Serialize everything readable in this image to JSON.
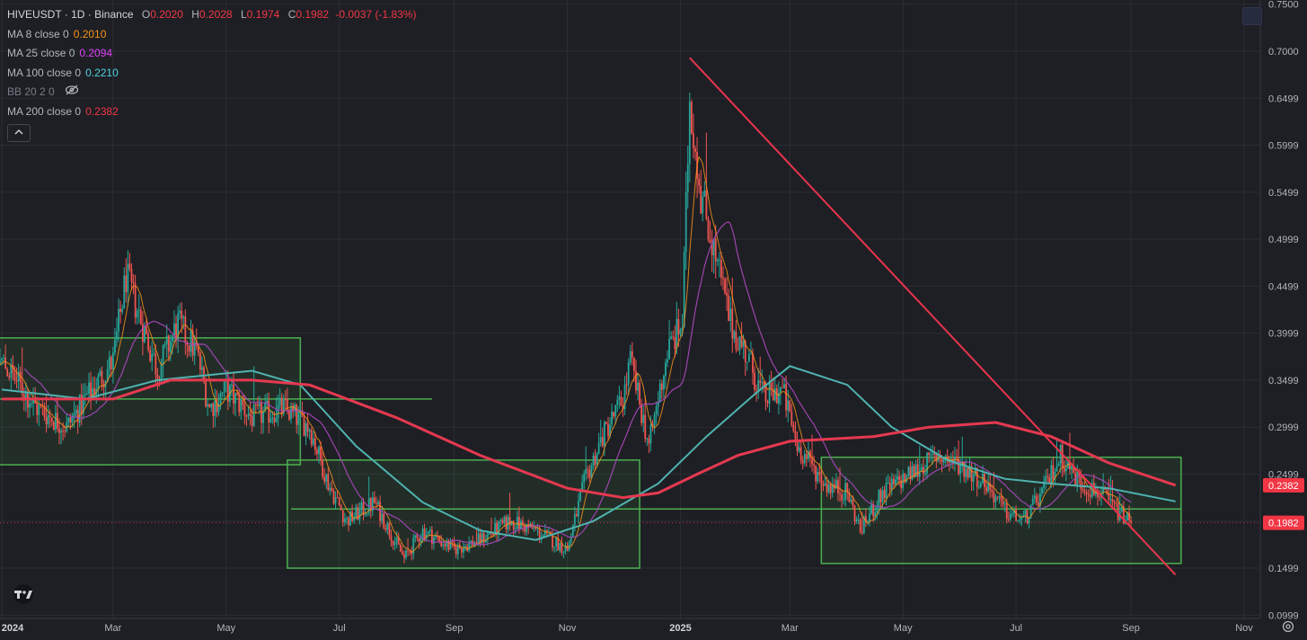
{
  "legend": {
    "symbol": "HIVEUSDT · 1D · Binance",
    "o_label": "O",
    "o_value": "0.2020",
    "h_label": "H",
    "h_value": "0.2028",
    "l_label": "L",
    "l_value": "0.1974",
    "c_label": "C",
    "c_value": "0.1982",
    "change": "-0.0037 (-1.83%)",
    "indicators": [
      {
        "label": "MA 8 close 0",
        "value": "0.2010",
        "color": "#f7931a"
      },
      {
        "label": "MA 25 close 0",
        "value": "0.2094",
        "color": "#e040fb"
      },
      {
        "label": "MA 100 close 0",
        "value": "0.2210",
        "color": "#4dd0e1"
      },
      {
        "label": "BB 20 2 0",
        "value": "",
        "color": "#787b86"
      },
      {
        "label": "MA 200 close 0",
        "value": "0.2382",
        "color": "#f23645"
      }
    ]
  },
  "colors": {
    "background": "#1e1f24",
    "grid": "#2a2d35",
    "up": "#26a69a",
    "down": "#ef5350",
    "ma8": "#f7931a",
    "ma25": "#ab47bc",
    "ma100": "#4fb3b0",
    "ma200": "#e53950",
    "box_stroke": "#4caf50",
    "box_fill": "rgba(76,175,80,0.10)",
    "trendline": "#e8344e"
  },
  "chart_data": {
    "type": "candlestick",
    "symbol": "HIVEUSDT",
    "interval": "1D",
    "exchange": "Binance",
    "x_axis_labels": [
      "2024",
      "Mar",
      "May",
      "Jul",
      "Sep",
      "Nov",
      "2025",
      "Mar",
      "May",
      "Jul",
      "Sep",
      "Nov"
    ],
    "y_axis_labels": [
      "0.7500",
      "0.7000",
      "0.6499",
      "0.5999",
      "0.5499",
      "0.4999",
      "0.4499",
      "0.3999",
      "0.3499",
      "0.2999",
      "0.2499",
      "0.1999",
      "0.1499",
      "0.0999"
    ],
    "y_axis_ticks": [
      0.75,
      0.7,
      0.65,
      0.6,
      0.55,
      0.5,
      0.45,
      0.4,
      0.35,
      0.3,
      0.25,
      0.2,
      0.15,
      0.1
    ],
    "ylim": [
      0.0965,
      0.7545
    ],
    "price_tags": [
      {
        "label": "0.2382",
        "value": 0.2382,
        "color": "#f23645"
      },
      {
        "label": "0.1982",
        "value": 0.1982,
        "color": "#f23645"
      }
    ],
    "close_price": 0.1982,
    "close_path": [
      [
        "2024-01-01",
        0.37
      ],
      [
        "2024-01-20",
        0.32
      ],
      [
        "2024-02-05",
        0.3
      ],
      [
        "2024-02-15",
        0.33
      ],
      [
        "2024-03-01",
        0.37
      ],
      [
        "2024-03-08",
        0.46
      ],
      [
        "2024-03-15",
        0.42
      ],
      [
        "2024-03-25",
        0.36
      ],
      [
        "2024-04-05",
        0.41
      ],
      [
        "2024-04-15",
        0.38
      ],
      [
        "2024-04-22",
        0.32
      ],
      [
        "2024-05-01",
        0.34
      ],
      [
        "2024-05-15",
        0.31
      ],
      [
        "2024-06-01",
        0.32
      ],
      [
        "2024-06-15",
        0.3
      ],
      [
        "2024-06-25",
        0.24
      ],
      [
        "2024-07-05",
        0.2
      ],
      [
        "2024-07-20",
        0.22
      ],
      [
        "2024-08-05",
        0.16
      ],
      [
        "2024-08-15",
        0.19
      ],
      [
        "2024-09-01",
        0.17
      ],
      [
        "2024-09-15",
        0.18
      ],
      [
        "2024-10-01",
        0.2
      ],
      [
        "2024-10-15",
        0.19
      ],
      [
        "2024-11-01",
        0.17
      ],
      [
        "2024-11-10",
        0.24
      ],
      [
        "2024-11-20",
        0.29
      ],
      [
        "2024-12-01",
        0.33
      ],
      [
        "2024-12-05",
        0.37
      ],
      [
        "2024-12-15",
        0.28
      ],
      [
        "2024-12-25",
        0.38
      ],
      [
        "2025-01-02",
        0.41
      ],
      [
        "2025-01-06",
        0.65
      ],
      [
        "2025-01-12",
        0.55
      ],
      [
        "2025-01-20",
        0.48
      ],
      [
        "2025-01-28",
        0.41
      ],
      [
        "2025-02-05",
        0.38
      ],
      [
        "2025-02-15",
        0.33
      ],
      [
        "2025-02-25",
        0.34
      ],
      [
        "2025-03-05",
        0.28
      ],
      [
        "2025-03-20",
        0.24
      ],
      [
        "2025-04-01",
        0.23
      ],
      [
        "2025-04-08",
        0.19
      ],
      [
        "2025-04-20",
        0.23
      ],
      [
        "2025-05-05",
        0.25
      ],
      [
        "2025-05-20",
        0.27
      ],
      [
        "2025-06-01",
        0.26
      ],
      [
        "2025-06-15",
        0.24
      ],
      [
        "2025-06-25",
        0.21
      ],
      [
        "2025-07-05",
        0.2
      ],
      [
        "2025-07-15",
        0.23
      ],
      [
        "2025-07-25",
        0.27
      ],
      [
        "2025-08-05",
        0.24
      ],
      [
        "2025-08-15",
        0.23
      ],
      [
        "2025-08-25",
        0.21
      ],
      [
        "2025-09-01",
        0.1982
      ]
    ],
    "moving_averages": {
      "ma200": [
        [
          "2024-01-01",
          0.33
        ],
        [
          "2024-03-01",
          0.33
        ],
        [
          "2024-04-01",
          0.35
        ],
        [
          "2024-05-15",
          0.35
        ],
        [
          "2024-06-15",
          0.345
        ],
        [
          "2024-08-01",
          0.31
        ],
        [
          "2024-09-15",
          0.27
        ],
        [
          "2024-11-01",
          0.235
        ],
        [
          "2024-12-01",
          0.225
        ],
        [
          "2024-12-20",
          0.23
        ],
        [
          "2025-01-10",
          0.25
        ],
        [
          "2025-02-01",
          0.27
        ],
        [
          "2025-03-01",
          0.285
        ],
        [
          "2025-04-15",
          0.29
        ],
        [
          "2025-05-15",
          0.3
        ],
        [
          "2025-06-20",
          0.305
        ],
        [
          "2025-07-20",
          0.29
        ],
        [
          "2025-08-20",
          0.262
        ],
        [
          "2025-09-25",
          0.2382
        ]
      ],
      "ma100": [
        [
          "2024-01-01",
          0.34
        ],
        [
          "2024-02-15",
          0.33
        ],
        [
          "2024-03-25",
          0.35
        ],
        [
          "2024-05-15",
          0.36
        ],
        [
          "2024-06-10",
          0.345
        ],
        [
          "2024-07-10",
          0.28
        ],
        [
          "2024-08-15",
          0.22
        ],
        [
          "2024-09-15",
          0.19
        ],
        [
          "2024-10-15",
          0.18
        ],
        [
          "2024-11-15",
          0.2
        ],
        [
          "2024-12-20",
          0.24
        ],
        [
          "2025-01-15",
          0.29
        ],
        [
          "2025-02-10",
          0.335
        ],
        [
          "2025-03-01",
          0.365
        ],
        [
          "2025-04-01",
          0.345
        ],
        [
          "2025-04-25",
          0.3
        ],
        [
          "2025-05-25",
          0.265
        ],
        [
          "2025-06-25",
          0.245
        ],
        [
          "2025-07-20",
          0.24
        ],
        [
          "2025-08-20",
          0.235
        ],
        [
          "2025-09-25",
          0.221
        ]
      ]
    },
    "annotations": {
      "boxes": [
        {
          "x0": "2023-12-20",
          "x1": "2024-06-10",
          "y0": 0.26,
          "y1": 0.395
        },
        {
          "x0": "2024-06-03",
          "x1": "2024-12-10",
          "y0": 0.15,
          "y1": 0.265
        },
        {
          "x0": "2025-03-18",
          "x1": "2025-09-28",
          "y0": 0.155,
          "y1": 0.268
        }
      ],
      "horizontal_lines": [
        {
          "x0": "2023-12-20",
          "x1": "2024-08-20",
          "y": 0.33
        },
        {
          "x0": "2024-06-05",
          "x1": "2025-09-28",
          "y": 0.213
        }
      ],
      "trendline": {
        "x0": "2025-01-06",
        "y0": 0.693,
        "x1": "2025-09-25",
        "y1": 0.143
      }
    }
  }
}
